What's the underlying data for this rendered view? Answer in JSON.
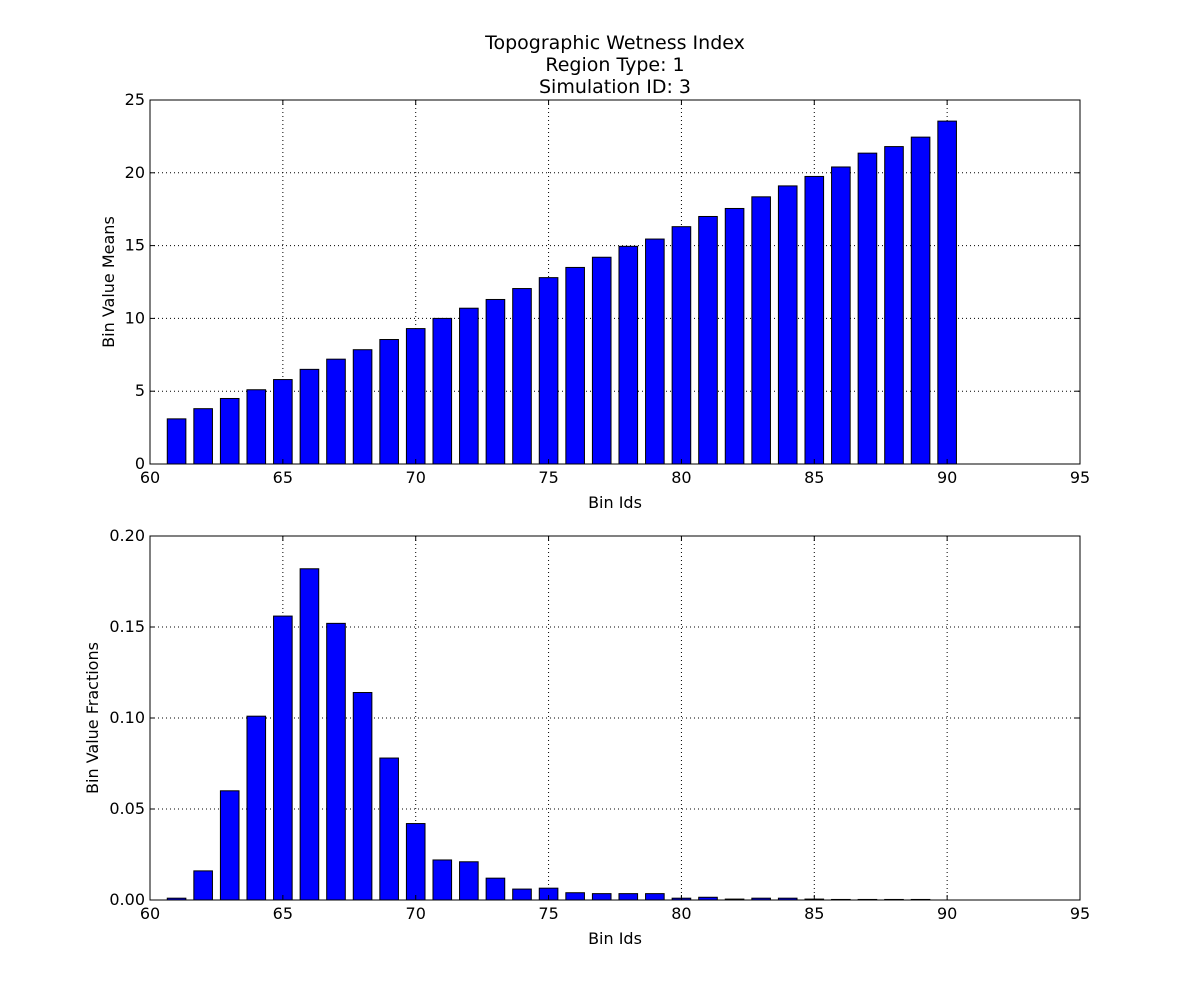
{
  "title_lines": [
    "Topographic Wetness Index",
    "Region Type: 1",
    "Simulation ID: 3"
  ],
  "chart_data": [
    {
      "type": "bar",
      "xlabel": "Bin Ids",
      "ylabel": "Bin Value Means",
      "xlim": [
        60,
        95
      ],
      "ylim": [
        0,
        25
      ],
      "xticks": [
        60,
        65,
        70,
        75,
        80,
        85,
        90,
        95
      ],
      "yticks": [
        0,
        5,
        10,
        15,
        20,
        25
      ],
      "ytick_labels": [
        "0",
        "5",
        "10",
        "15",
        "20",
        "25"
      ],
      "grid": true,
      "color": "#0000ff",
      "x": [
        61,
        62,
        63,
        64,
        65,
        66,
        67,
        68,
        69,
        70,
        71,
        72,
        73,
        74,
        75,
        76,
        77,
        78,
        79,
        80,
        81,
        82,
        83,
        84,
        85,
        86,
        87,
        88,
        89,
        90
      ],
      "values": [
        3.1,
        3.8,
        4.5,
        5.1,
        5.8,
        6.5,
        7.2,
        7.85,
        8.55,
        9.3,
        10.0,
        10.7,
        11.3,
        12.05,
        12.8,
        13.5,
        14.2,
        14.95,
        15.45,
        16.3,
        17.0,
        17.55,
        18.35,
        19.1,
        19.75,
        20.4,
        21.35,
        21.8,
        22.45,
        23.55
      ]
    },
    {
      "type": "bar",
      "xlabel": "Bin Ids",
      "ylabel": "Bin Value Fractions",
      "xlim": [
        60,
        95
      ],
      "ylim": [
        0,
        0.2
      ],
      "xticks": [
        60,
        65,
        70,
        75,
        80,
        85,
        90,
        95
      ],
      "yticks": [
        0,
        0.05,
        0.1,
        0.15,
        0.2
      ],
      "ytick_labels": [
        "0.00",
        "0.05",
        "0.10",
        "0.15",
        "0.20"
      ],
      "grid": true,
      "color": "#0000ff",
      "x": [
        61,
        62,
        63,
        64,
        65,
        66,
        67,
        68,
        69,
        70,
        71,
        72,
        73,
        74,
        75,
        76,
        77,
        78,
        79,
        80,
        81,
        82,
        83,
        84,
        85,
        86,
        87,
        88,
        89,
        90
      ],
      "values": [
        0.001,
        0.016,
        0.06,
        0.101,
        0.156,
        0.182,
        0.152,
        0.114,
        0.078,
        0.042,
        0.022,
        0.021,
        0.012,
        0.006,
        0.0065,
        0.004,
        0.0035,
        0.0035,
        0.0035,
        0.001,
        0.0015,
        0.0005,
        0.001,
        0.001,
        0.0005,
        0.0003,
        0.0003,
        0.0003,
        0.0003,
        0.0
      ]
    }
  ]
}
